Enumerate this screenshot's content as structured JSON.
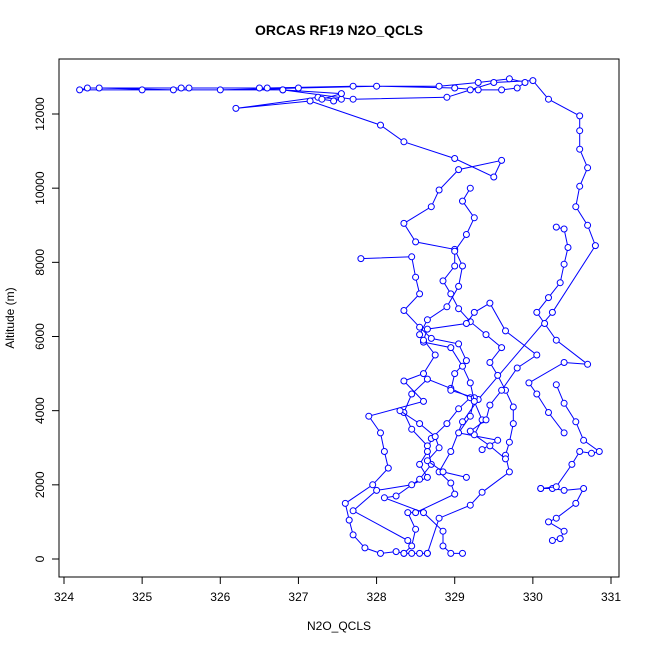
{
  "chart_data": {
    "type": "line",
    "title": "ORCAS RF19 N2O_QCLS",
    "xlabel": "N2O_QCLS",
    "ylabel": "Altitude (m)",
    "xlim": [
      324,
      331
    ],
    "ylim": [
      0,
      12000
    ],
    "xticks": [
      "324",
      "325",
      "326",
      "327",
      "328",
      "329",
      "330",
      "331"
    ],
    "yticks": [
      "0",
      "2000",
      "4000",
      "6000",
      "8000",
      "10000",
      "12000"
    ],
    "grid": false,
    "legend": "none",
    "colors": {
      "series": "#0000ff",
      "axis": "#000000"
    },
    "series": [
      {
        "style": "line-with-circles",
        "points": [
          [
            328.65,
            150
          ],
          [
            328.55,
            150
          ],
          [
            328.45,
            150
          ],
          [
            328.35,
            150
          ],
          [
            328.25,
            200
          ],
          [
            328.05,
            150
          ],
          [
            327.85,
            300
          ],
          [
            327.7,
            650
          ],
          [
            327.65,
            1050
          ],
          [
            327.6,
            1500
          ],
          [
            327.95,
            2000
          ],
          [
            328.15,
            2450
          ],
          [
            328.1,
            2900
          ],
          [
            328.05,
            3400
          ],
          [
            327.9,
            3850
          ],
          [
            328.6,
            4250
          ],
          [
            328.35,
            4800
          ],
          [
            328.6,
            5000
          ],
          [
            328.75,
            5500
          ],
          [
            328.55,
            6050
          ],
          [
            328.65,
            6450
          ],
          [
            328.9,
            6800
          ],
          [
            329.05,
            7350
          ],
          [
            329.1,
            7900
          ],
          [
            329.0,
            8350
          ],
          [
            328.5,
            8550
          ],
          [
            328.35,
            9050
          ],
          [
            328.7,
            9500
          ],
          [
            328.8,
            9950
          ],
          [
            329.05,
            10500
          ],
          [
            329.6,
            10750
          ],
          [
            329.5,
            10300
          ],
          [
            329.0,
            10800
          ],
          [
            328.35,
            11250
          ],
          [
            328.05,
            11700
          ],
          [
            327.15,
            12350
          ],
          [
            326.2,
            12150
          ],
          [
            327.25,
            12450
          ],
          [
            327.55,
            12400
          ],
          [
            327.45,
            12350
          ],
          [
            327.3,
            12400
          ],
          [
            327.55,
            12550
          ],
          [
            326.8,
            12650
          ],
          [
            326.5,
            12700
          ],
          [
            325.5,
            12700
          ],
          [
            324.3,
            12700
          ],
          [
            324.2,
            12650
          ],
          [
            325.0,
            12650
          ],
          [
            326.0,
            12650
          ],
          [
            327.0,
            12700
          ],
          [
            328.0,
            12750
          ],
          [
            329.0,
            12700
          ],
          [
            329.3,
            12650
          ],
          [
            329.6,
            12650
          ],
          [
            329.8,
            12700
          ],
          [
            329.9,
            12850
          ],
          [
            329.7,
            12950
          ],
          [
            329.3,
            12850
          ],
          [
            328.8,
            12750
          ],
          [
            327.7,
            12750
          ],
          [
            326.6,
            12700
          ],
          [
            325.6,
            12700
          ],
          [
            324.45,
            12700
          ],
          [
            325.4,
            12650
          ],
          [
            326.8,
            12650
          ],
          [
            327.7,
            12400
          ],
          [
            328.9,
            12450
          ],
          [
            329.2,
            12650
          ],
          [
            329.5,
            12850
          ],
          [
            330.0,
            12900
          ],
          [
            330.2,
            12400
          ],
          [
            330.6,
            11950
          ],
          [
            330.6,
            11550
          ],
          [
            330.6,
            11050
          ],
          [
            330.7,
            10550
          ],
          [
            330.6,
            10050
          ],
          [
            330.55,
            9500
          ],
          [
            330.7,
            9000
          ],
          [
            330.8,
            8450
          ],
          [
            330.25,
            6650
          ],
          [
            329.3,
            4300
          ],
          [
            329.1,
            3700
          ],
          [
            328.95,
            2900
          ],
          [
            328.8,
            2350
          ],
          [
            328.95,
            2050
          ],
          [
            329.0,
            1750
          ],
          [
            328.5,
            1250
          ],
          [
            328.4,
            1250
          ],
          [
            328.5,
            800
          ],
          [
            328.45,
            350
          ],
          [
            328.35,
            150
          ]
        ]
      },
      {
        "style": "line-with-circles",
        "points": [
          [
            329.1,
            150
          ],
          [
            328.95,
            150
          ],
          [
            328.85,
            350
          ],
          [
            328.85,
            750
          ],
          [
            328.6,
            1250
          ],
          [
            328.1,
            1650
          ],
          [
            328.25,
            1700
          ],
          [
            328.55,
            2150
          ],
          [
            328.7,
            2550
          ],
          [
            328.65,
            3050
          ],
          [
            328.45,
            3500
          ],
          [
            328.35,
            3950
          ],
          [
            328.45,
            4450
          ],
          [
            328.65,
            4850
          ],
          [
            328.95,
            4600
          ],
          [
            329.2,
            4350
          ],
          [
            329.05,
            4050
          ],
          [
            328.9,
            3650
          ],
          [
            328.7,
            3250
          ],
          [
            328.65,
            2900
          ],
          [
            328.55,
            2550
          ],
          [
            328.65,
            2200
          ],
          [
            328.45,
            2000
          ],
          [
            328.0,
            1850
          ],
          [
            327.7,
            1300
          ],
          [
            328.4,
            500
          ]
        ]
      },
      {
        "style": "line-with-circles",
        "points": [
          [
            328.65,
            150
          ],
          [
            328.8,
            1100
          ],
          [
            329.2,
            1450
          ],
          [
            329.35,
            1800
          ],
          [
            329.7,
            2350
          ],
          [
            329.65,
            2800
          ],
          [
            329.7,
            3150
          ],
          [
            329.75,
            3650
          ],
          [
            329.75,
            4100
          ],
          [
            329.65,
            4550
          ],
          [
            329.55,
            4950
          ],
          [
            329.45,
            5300
          ],
          [
            329.6,
            5700
          ],
          [
            329.4,
            6050
          ],
          [
            329.2,
            6400
          ],
          [
            329.05,
            6750
          ],
          [
            328.95,
            7150
          ],
          [
            328.85,
            7500
          ],
          [
            329.0,
            7900
          ],
          [
            329.0,
            8300
          ],
          [
            329.15,
            8750
          ],
          [
            329.25,
            9200
          ],
          [
            329.1,
            9650
          ],
          [
            329.2,
            10000
          ]
        ]
      },
      {
        "style": "line-with-circles",
        "points": [
          [
            327.8,
            8100
          ],
          [
            328.45,
            8150
          ],
          [
            328.5,
            7600
          ],
          [
            328.55,
            7150
          ],
          [
            328.35,
            6700
          ],
          [
            328.55,
            6250
          ],
          [
            328.7,
            5950
          ],
          [
            329.05,
            5800
          ],
          [
            329.15,
            5350
          ],
          [
            329.0,
            5000
          ],
          [
            328.95,
            4550
          ],
          [
            329.25,
            4350
          ],
          [
            329.2,
            3850
          ],
          [
            329.05,
            3400
          ],
          [
            329.55,
            3200
          ],
          [
            329.35,
            2950
          ]
        ]
      },
      {
        "style": "line-with-circles",
        "points": [
          [
            328.3,
            4000
          ],
          [
            328.55,
            3650
          ],
          [
            328.75,
            3300
          ],
          [
            328.8,
            3000
          ],
          [
            328.65,
            2650
          ],
          [
            328.85,
            2350
          ],
          [
            329.15,
            2200
          ]
        ]
      },
      {
        "style": "line-with-circles",
        "points": [
          [
            328.6,
            5850
          ],
          [
            328.95,
            5700
          ],
          [
            329.1,
            5200
          ],
          [
            329.2,
            4750
          ],
          [
            329.25,
            4250
          ],
          [
            329.35,
            3750
          ],
          [
            329.25,
            3350
          ],
          [
            329.45,
            3050
          ],
          [
            329.65,
            2700
          ]
        ]
      },
      {
        "style": "line-with-circles",
        "points": [
          [
            328.6,
            5900
          ],
          [
            328.65,
            6200
          ],
          [
            329.15,
            6350
          ],
          [
            329.25,
            6650
          ],
          [
            329.45,
            6900
          ],
          [
            329.65,
            6150
          ],
          [
            330.05,
            5500
          ],
          [
            329.8,
            5150
          ],
          [
            329.6,
            4550
          ],
          [
            329.45,
            4150
          ],
          [
            329.4,
            3750
          ],
          [
            329.2,
            3450
          ]
        ]
      },
      {
        "style": "line-with-circles",
        "points": [
          [
            330.4,
            3400
          ],
          [
            330.2,
            3950
          ],
          [
            330.05,
            4450
          ],
          [
            329.95,
            4750
          ],
          [
            330.4,
            5300
          ],
          [
            330.7,
            5250
          ],
          [
            330.3,
            5900
          ],
          [
            330.15,
            6350
          ],
          [
            330.05,
            6650
          ],
          [
            330.2,
            7050
          ],
          [
            330.35,
            7450
          ],
          [
            330.4,
            7950
          ],
          [
            330.45,
            8400
          ],
          [
            330.4,
            8900
          ],
          [
            330.3,
            8950
          ]
        ]
      },
      {
        "style": "line-with-circles",
        "points": [
          [
            330.1,
            1900
          ],
          [
            330.25,
            1900
          ],
          [
            330.4,
            1850
          ],
          [
            330.65,
            1900
          ],
          [
            330.55,
            1500
          ],
          [
            330.3,
            1100
          ],
          [
            330.2,
            1000
          ],
          [
            330.4,
            750
          ],
          [
            330.35,
            550
          ],
          [
            330.25,
            500
          ]
        ]
      },
      {
        "style": "line-with-circles",
        "points": [
          [
            330.1,
            1900
          ],
          [
            330.3,
            1950
          ],
          [
            330.5,
            2550
          ],
          [
            330.6,
            2900
          ],
          [
            330.75,
            2850
          ],
          [
            330.85,
            2900
          ],
          [
            330.65,
            3200
          ],
          [
            330.55,
            3700
          ],
          [
            330.4,
            4200
          ],
          [
            330.3,
            4700
          ]
        ]
      }
    ]
  }
}
